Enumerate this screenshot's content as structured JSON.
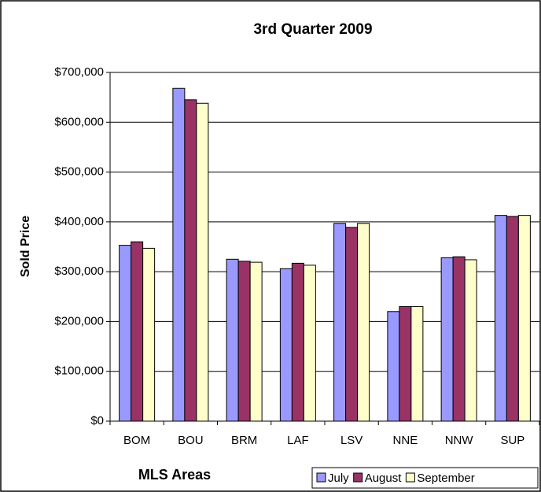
{
  "chart_data": {
    "type": "bar",
    "title": "3rd Quarter 2009",
    "x_label": "MLS Areas",
    "y_label": "Sold Price",
    "categories": [
      "BOM",
      "BOU",
      "BRM",
      "LAF",
      "LSV",
      "NNE",
      "NNW",
      "SUP"
    ],
    "series": [
      {
        "name": "July",
        "color": "#9999ff",
        "values": [
          353000,
          668000,
          325000,
          306000,
          397000,
          220000,
          328000,
          413000
        ]
      },
      {
        "name": "August",
        "color": "#993366",
        "values": [
          360000,
          645000,
          321000,
          317000,
          389000,
          230000,
          330000,
          411000
        ]
      },
      {
        "name": "September",
        "color": "#ffffcc",
        "values": [
          347000,
          638000,
          319000,
          313000,
          397000,
          230000,
          324000,
          413000
        ]
      }
    ],
    "ylim": [
      0,
      700000
    ],
    "yticks": [
      {
        "value": 0,
        "label": "$0"
      },
      {
        "value": 100000,
        "label": "$100,000"
      },
      {
        "value": 200000,
        "label": "$200,000"
      },
      {
        "value": 300000,
        "label": "$300,000"
      },
      {
        "value": 400000,
        "label": "$400,000"
      },
      {
        "value": 500000,
        "label": "$500,000"
      },
      {
        "value": 600000,
        "label": "$600,000"
      },
      {
        "value": 700000,
        "label": "$700,000"
      }
    ],
    "grid": true,
    "legend": "bottom-right"
  }
}
